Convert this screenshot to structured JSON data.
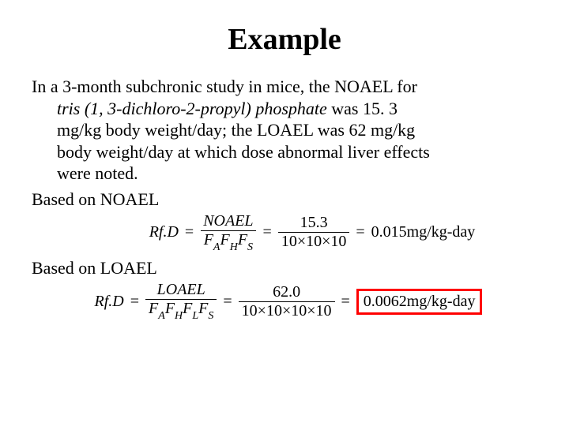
{
  "title": "Example",
  "paragraph": {
    "line1": "In a 3-month subchronic study in mice, the NOAEL for",
    "line2_italic": "tris (1, 3-dichloro-2-propyl) phosphate",
    "line2_rest": "  was 15. 3",
    "line3": "mg/kg body weight/day; the LOAEL was 62 mg/kg",
    "line4": "body weight/day at which dose abnormal liver effects",
    "line5": "were noted."
  },
  "based_noael": "Based on NOAEL",
  "based_loael": "Based on LOAEL",
  "eq1": {
    "lhs": "Rf.D",
    "num1": "NOAEL",
    "den1_fa": "F",
    "den1_fa_sub": "A",
    "den1_fh": "F",
    "den1_fh_sub": "H",
    "den1_fs": "F",
    "den1_fs_sub": "S",
    "num2": "15.3",
    "den2": "10×10×10",
    "result": "0.015mg/kg-day"
  },
  "eq2": {
    "lhs": "Rf.D",
    "num1": "LOAEL",
    "den1_fa": "F",
    "den1_fa_sub": "A",
    "den1_fh": "F",
    "den1_fh_sub": "H",
    "den1_fl": "F",
    "den1_fl_sub": "L",
    "den1_fs": "F",
    "den1_fs_sub": "S",
    "num2": "62.0",
    "den2": "10×10×10×10",
    "result": "0.0062mg/kg-day"
  },
  "colors": {
    "text": "#000000",
    "background": "#ffffff",
    "highlight_border": "#ff0000"
  }
}
